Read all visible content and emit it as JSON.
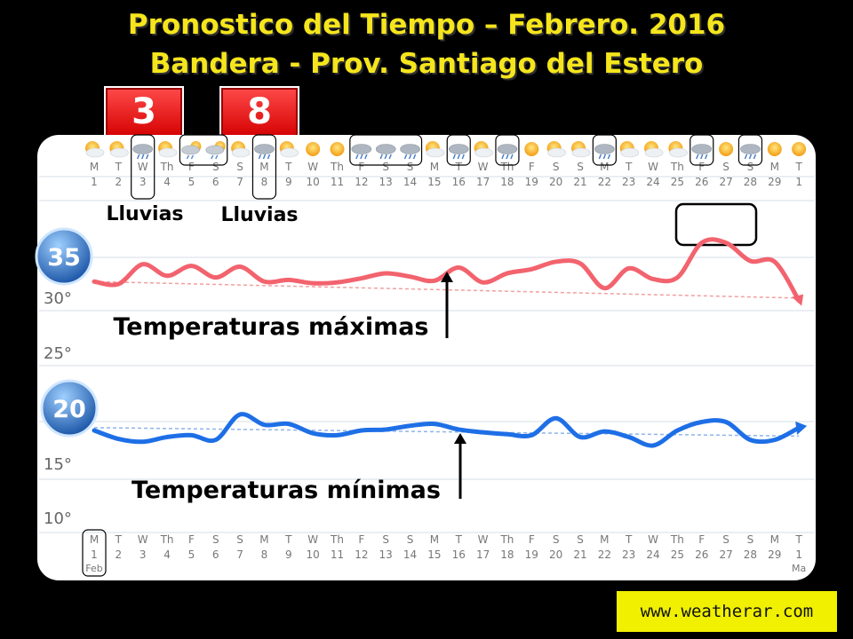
{
  "title": {
    "line1": "Pronostico  del Tiempo – Febrero. 2016",
    "line2": "Bandera - Prov. Santiago del Estero"
  },
  "badges": [
    "3",
    "8"
  ],
  "footer": "www.weatherar.com",
  "colors": {
    "title": "#f5e51c",
    "max_line": "#f2636e",
    "min_line": "#1e6fe6",
    "trend": "#f0a0a0",
    "trend_min": "#8fb4ea",
    "badge": "#e60000",
    "footer_bg": "#f0f000"
  },
  "chart_data": {
    "type": "line",
    "days": [
      "1",
      "2",
      "3",
      "4",
      "5",
      "6",
      "7",
      "8",
      "9",
      "10",
      "11",
      "12",
      "13",
      "14",
      "15",
      "16",
      "17",
      "18",
      "19",
      "20",
      "21",
      "22",
      "23",
      "24",
      "25",
      "26",
      "27",
      "28",
      "29",
      "1"
    ],
    "weekdays": [
      "M",
      "T",
      "W",
      "Th",
      "F",
      "S",
      "S",
      "M",
      "T",
      "W",
      "Th",
      "F",
      "S",
      "S",
      "M",
      "T",
      "W",
      "Th",
      "F",
      "S",
      "S",
      "M",
      "T",
      "W",
      "Th",
      "F",
      "S",
      "S",
      "M",
      "T"
    ],
    "month_labels": [
      "Feb",
      "Ma"
    ],
    "y_ticks": [
      "30°",
      "25°",
      "15°",
      "10°"
    ],
    "icons": [
      "sun-cloud",
      "sun-cloud",
      "rain",
      "sun-cloud",
      "sun-rain",
      "sun-rain",
      "sun-cloud",
      "rain",
      "sun-cloud",
      "sun",
      "sun",
      "rain",
      "rain",
      "rain",
      "sun-cloud",
      "rain",
      "sun-cloud",
      "rain",
      "sun",
      "sun-cloud",
      "sun-cloud",
      "rain",
      "sun-cloud",
      "sun-cloud",
      "sun-cloud",
      "rain",
      "sun",
      "rain",
      "sun",
      "sun"
    ],
    "highlighted_days": [
      "3",
      "5-6",
      "8",
      "12-14",
      "16",
      "18",
      "22",
      "26",
      "28"
    ],
    "series": [
      {
        "name": "Temperaturas máximas",
        "badge": "35",
        "values": [
          31.8,
          31.5,
          33.9,
          32.5,
          33.7,
          32.3,
          33.6,
          31.8,
          32.0,
          31.6,
          31.7,
          32.2,
          32.8,
          32.4,
          31.9,
          33.5,
          31.7,
          32.8,
          33.3,
          34.2,
          34.0,
          31.0,
          33.4,
          32.1,
          32.3,
          36.5,
          36.5,
          34.3,
          34.2,
          29.5
        ]
      },
      {
        "name": "Temperaturas mínimas",
        "badge": "20",
        "values": [
          18.3,
          17.4,
          17.1,
          17.6,
          17.8,
          17.3,
          20.0,
          18.9,
          19.0,
          18.0,
          17.8,
          18.3,
          18.4,
          18.8,
          19.0,
          18.4,
          18.1,
          17.9,
          17.8,
          19.6,
          17.6,
          18.2,
          17.6,
          16.7,
          18.3,
          19.2,
          19.2,
          17.3,
          17.3,
          18.6
        ]
      }
    ],
    "annotations": [
      "Lluvias",
      "Lluvias"
    ]
  }
}
